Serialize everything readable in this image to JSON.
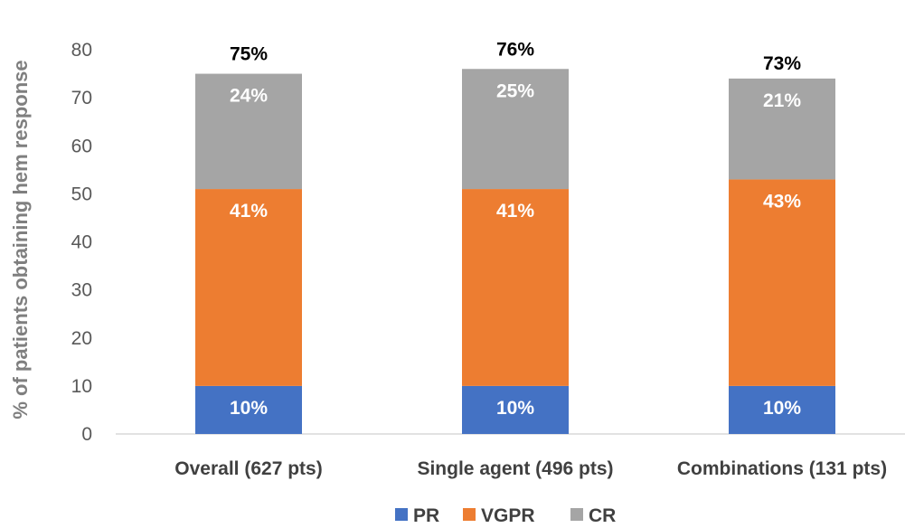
{
  "chart_data": {
    "type": "bar",
    "stacked": true,
    "title": "",
    "xlabel": "",
    "ylabel": "% of patients obtaining hem response",
    "ylim": [
      0,
      80
    ],
    "yticks": [
      0,
      10,
      20,
      30,
      40,
      50,
      60,
      70,
      80
    ],
    "grid": false,
    "legend_position": "bottom",
    "categories": [
      "Overall (627 pts)",
      "Single agent (496 pts)",
      "Combinations (131 pts)"
    ],
    "series": [
      {
        "name": "PR",
        "color": "#4472c4",
        "values": [
          10,
          10,
          10
        ],
        "labels": [
          "10%",
          "10%",
          "10%"
        ]
      },
      {
        "name": "VGPR",
        "color": "#ed7d31",
        "values": [
          41,
          41,
          43
        ],
        "labels": [
          "41%",
          "41%",
          "43%"
        ]
      },
      {
        "name": "CR",
        "color": "#a5a5a5",
        "values": [
          24,
          25,
          21
        ],
        "labels": [
          "24%",
          "25%",
          "21%"
        ]
      }
    ],
    "totals": [
      75,
      76,
      73
    ],
    "total_labels": [
      "75%",
      "76%",
      "73%"
    ]
  }
}
